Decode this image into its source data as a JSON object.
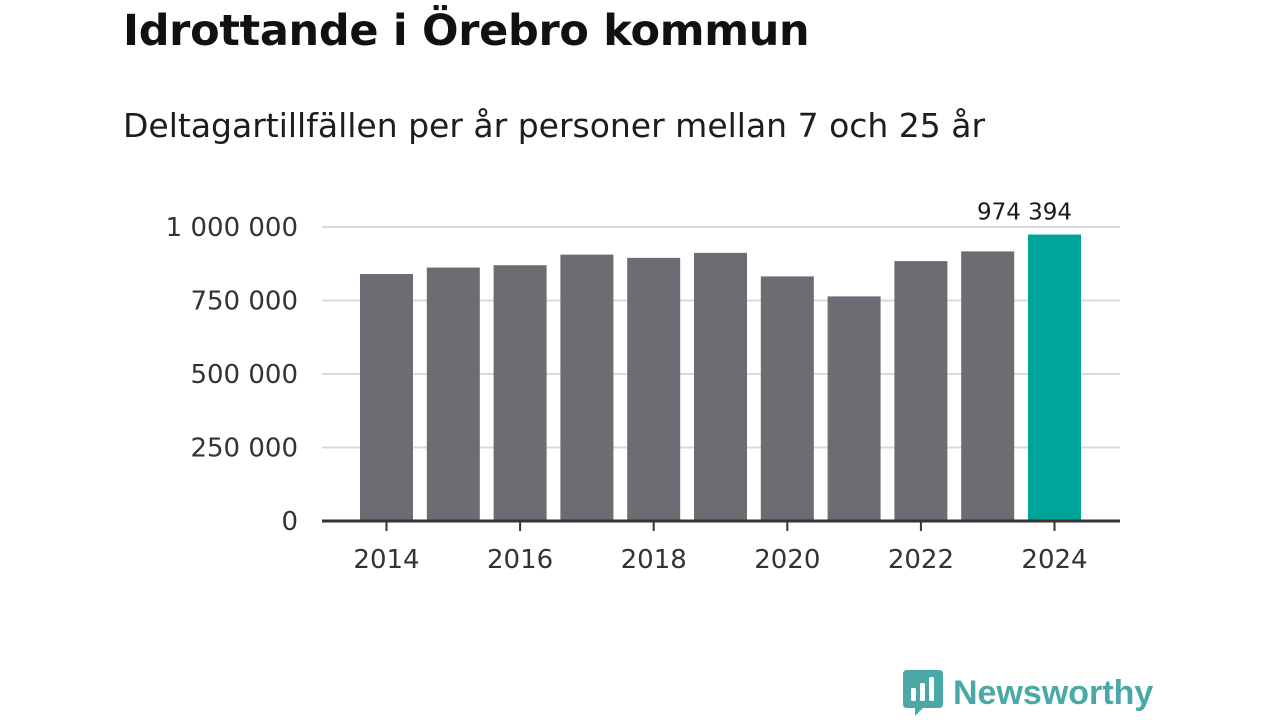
{
  "title": "Idrottande i Örebro kommun",
  "subtitle": "Deltagartillfällen per år personer mellan 7 och 25 år",
  "brand": {
    "name": "Newsworthy",
    "icon": "newsworthy-logo-icon",
    "color": "#4aa9a6"
  },
  "colors": {
    "bar": "#6d6c72",
    "highlight": "#00a59a",
    "grid": "#d9d9d9",
    "axis": "#333333"
  },
  "chart_data": {
    "type": "bar",
    "title": "Idrottande i Örebro kommun",
    "subtitle": "Deltagartillfällen per år personer mellan 7 och 25 år",
    "xlabel": "",
    "ylabel": "",
    "categories": [
      2014,
      2015,
      2016,
      2017,
      2018,
      2019,
      2020,
      2021,
      2022,
      2023,
      2024
    ],
    "values": [
      840000,
      862000,
      870000,
      906000,
      895000,
      912000,
      832000,
      764000,
      884000,
      917000,
      974394
    ],
    "highlight_index": 10,
    "highlight_label": "974 394",
    "ylim": [
      0,
      1000000
    ],
    "yticks": [
      0,
      250000,
      500000,
      750000,
      1000000
    ],
    "ytick_labels": [
      "0",
      "250 000",
      "500 000",
      "750 000",
      "1 000 000"
    ],
    "xtick_labels": [
      "2014",
      "2016",
      "2018",
      "2020",
      "2022",
      "2024"
    ],
    "xtick_years": [
      2014,
      2016,
      2018,
      2020,
      2022,
      2024
    ],
    "grid": true
  }
}
